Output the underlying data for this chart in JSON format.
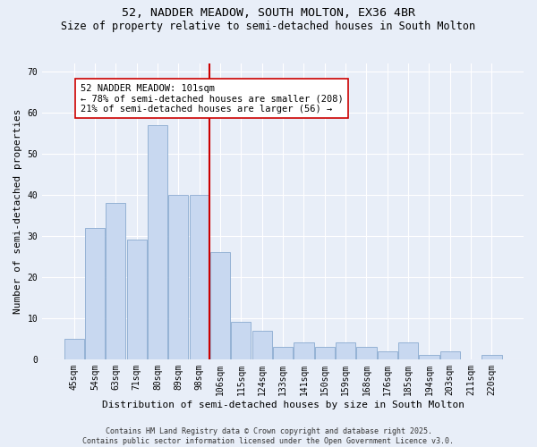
{
  "title_line1": "52, NADDER MEADOW, SOUTH MOLTON, EX36 4BR",
  "title_line2": "Size of property relative to semi-detached houses in South Molton",
  "xlabel": "Distribution of semi-detached houses by size in South Molton",
  "ylabel": "Number of semi-detached properties",
  "categories": [
    "45sqm",
    "54sqm",
    "63sqm",
    "71sqm",
    "80sqm",
    "89sqm",
    "98sqm",
    "106sqm",
    "115sqm",
    "124sqm",
    "133sqm",
    "141sqm",
    "150sqm",
    "159sqm",
    "168sqm",
    "176sqm",
    "185sqm",
    "194sqm",
    "203sqm",
    "211sqm",
    "220sqm"
  ],
  "values": [
    5,
    32,
    38,
    29,
    57,
    40,
    40,
    26,
    9,
    7,
    3,
    4,
    3,
    4,
    3,
    2,
    4,
    1,
    2,
    0,
    1
  ],
  "bar_color": "#c8d8f0",
  "bar_edge_color": "#8aaad0",
  "vline_color": "#cc0000",
  "annotation_text": "52 NADDER MEADOW: 101sqm\n← 78% of semi-detached houses are smaller (208)\n21% of semi-detached houses are larger (56) →",
  "annotation_box_color": "#ffffff",
  "annotation_box_edge_color": "#cc0000",
  "ylim": [
    0,
    72
  ],
  "yticks": [
    0,
    10,
    20,
    30,
    40,
    50,
    60,
    70
  ],
  "footer_text": "Contains HM Land Registry data © Crown copyright and database right 2025.\nContains public sector information licensed under the Open Government Licence v3.0.",
  "background_color": "#e8eef8",
  "plot_bg_color": "#e8eef8",
  "grid_color": "#ffffff",
  "title_fontsize": 9.5,
  "subtitle_fontsize": 8.5,
  "axis_label_fontsize": 8,
  "tick_fontsize": 7,
  "annotation_fontsize": 7.5,
  "footer_fontsize": 6
}
